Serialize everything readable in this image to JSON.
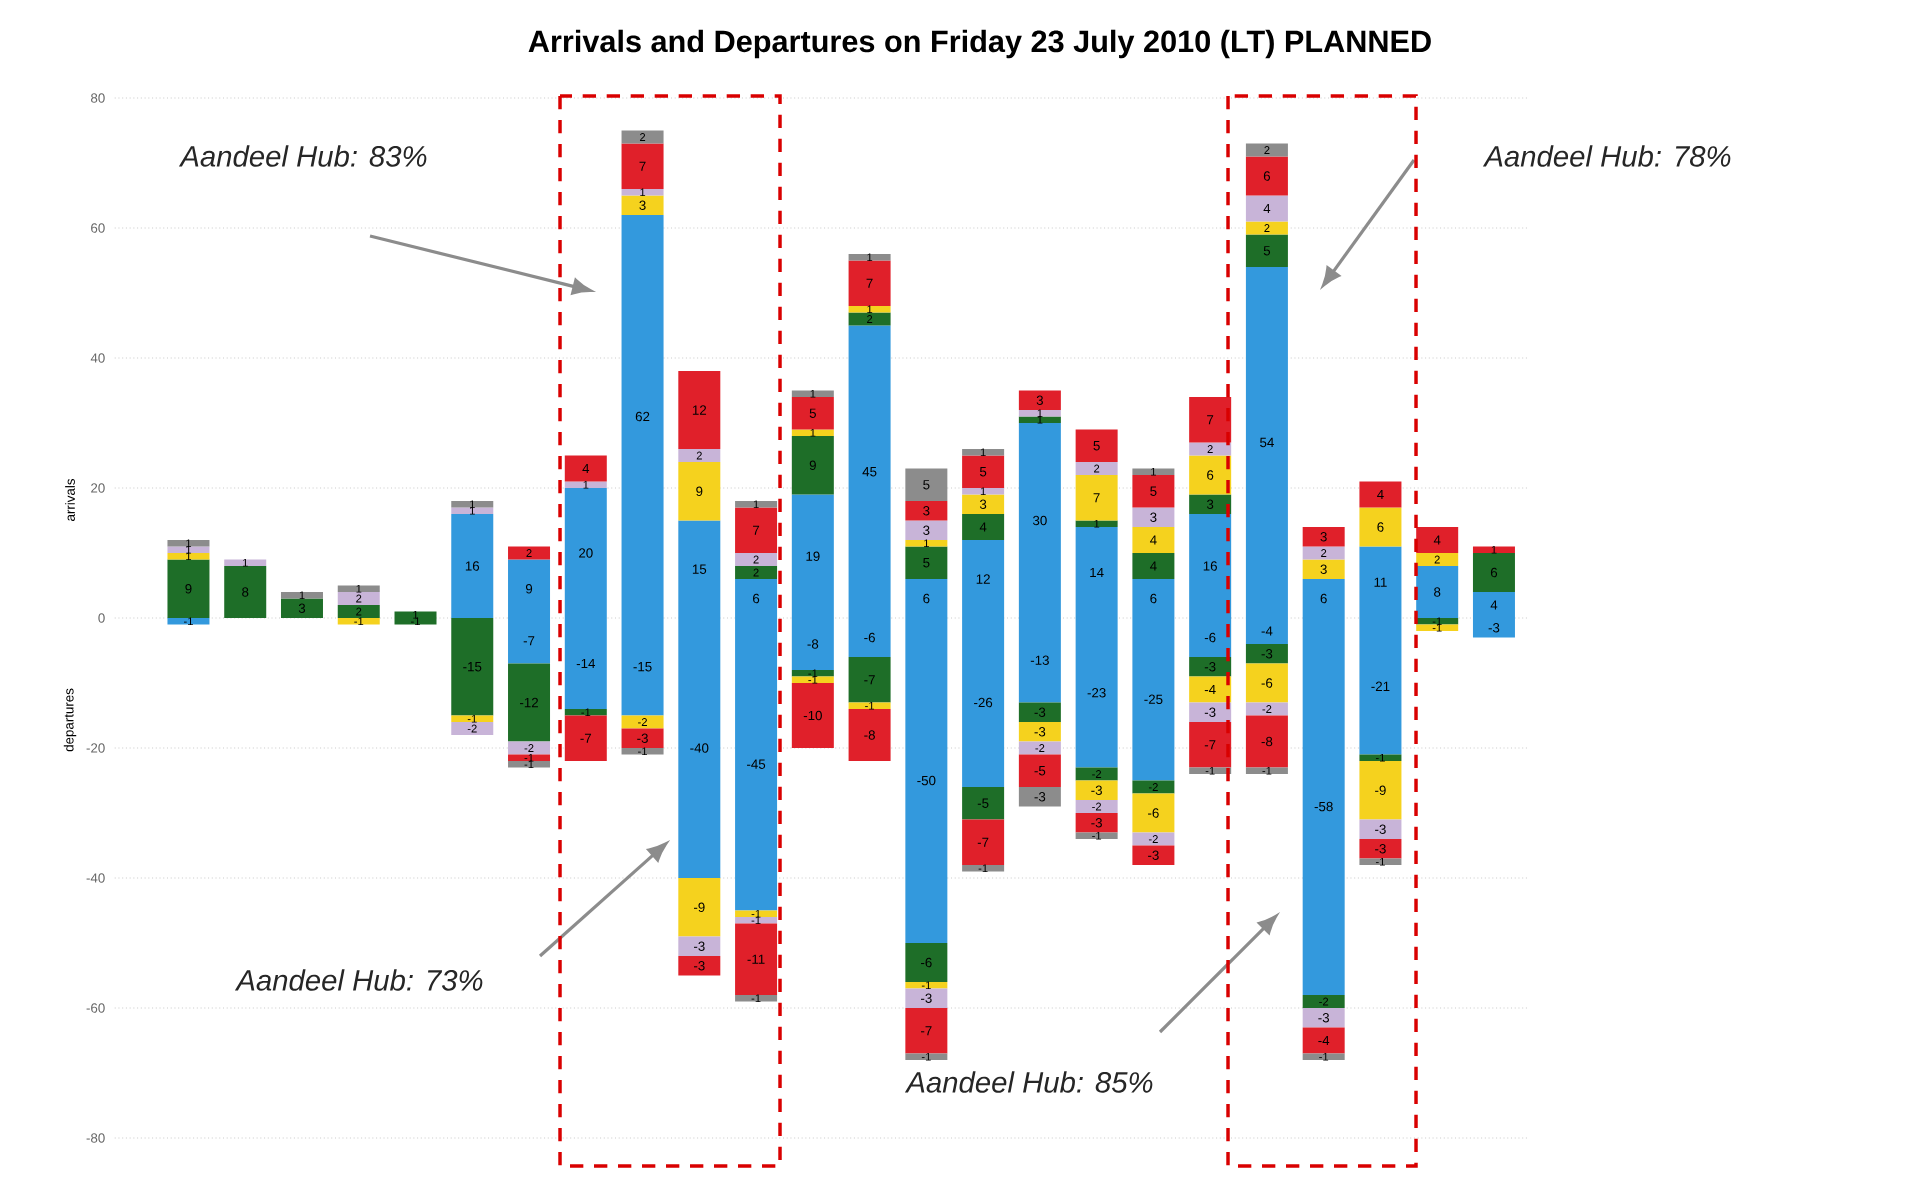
{
  "chart_data": {
    "type": "bar",
    "stacked": true,
    "title": "Arrivals and Departures on Friday 23 July 2010 (LT) PLANNED",
    "categories": [
      null,
      null,
      null,
      null,
      null,
      null,
      null,
      null,
      null,
      null,
      null,
      null,
      null,
      null,
      null,
      null,
      null,
      null,
      null,
      null,
      null,
      null,
      null,
      null
    ],
    "series": [
      {
        "color": "#3399dd",
        "values": [
          null,
          null,
          null,
          null,
          null,
          16,
          9,
          20,
          62,
          15,
          6,
          19,
          45,
          6,
          12,
          30,
          14,
          6,
          16,
          54,
          6,
          11,
          8,
          4
        ]
      },
      {
        "color": "#1e6e28",
        "values": [
          9,
          8,
          3,
          2,
          1,
          null,
          null,
          null,
          null,
          null,
          2,
          9,
          2,
          5,
          4,
          1,
          1,
          4,
          3,
          5,
          null,
          null,
          null,
          6
        ]
      },
      {
        "color": "#f5d21e",
        "values": [
          1,
          null,
          null,
          null,
          null,
          null,
          null,
          null,
          3,
          9,
          null,
          1,
          1,
          1,
          3,
          null,
          7,
          4,
          6,
          2,
          3,
          6,
          2,
          null
        ]
      },
      {
        "color": "#c8b4d8",
        "values": [
          1,
          1,
          null,
          2,
          null,
          1,
          null,
          1,
          1,
          2,
          2,
          null,
          null,
          3,
          1,
          1,
          2,
          3,
          2,
          4,
          2,
          null,
          null,
          null
        ]
      },
      {
        "color": "#e0202a",
        "values": [
          null,
          null,
          null,
          null,
          null,
          null,
          2,
          4,
          7,
          12,
          7,
          5,
          7,
          3,
          5,
          3,
          5,
          5,
          7,
          6,
          3,
          4,
          4,
          1
        ]
      },
      {
        "color": "#8c8c8c",
        "values": [
          1,
          null,
          1,
          1,
          null,
          1,
          null,
          null,
          2,
          null,
          1,
          1,
          1,
          5,
          1,
          null,
          null,
          1,
          null,
          2,
          null,
          null,
          null,
          null
        ]
      },
      {
        "color": "#3399dd",
        "values": [
          -1,
          null,
          null,
          null,
          null,
          null,
          -7,
          -14,
          -15,
          -40,
          -45,
          -8,
          -6,
          -50,
          -26,
          -13,
          -23,
          -25,
          -6,
          -4,
          -58,
          -21,
          null,
          -3
        ]
      },
      {
        "color": "#1e6e28",
        "values": [
          null,
          null,
          null,
          null,
          -1,
          -15,
          -12,
          -1,
          null,
          null,
          null,
          -1,
          -7,
          -6,
          -5,
          -3,
          -2,
          -2,
          -3,
          -3,
          -2,
          -1,
          -1,
          null
        ]
      },
      {
        "color": "#f5d21e",
        "values": [
          null,
          null,
          null,
          -1,
          null,
          -1,
          null,
          null,
          -2,
          -9,
          -1,
          -1,
          -1,
          -1,
          null,
          -3,
          -3,
          -6,
          -4,
          -6,
          null,
          -9,
          -1,
          null
        ]
      },
      {
        "color": "#c8b4d8",
        "values": [
          null,
          null,
          null,
          null,
          null,
          -2,
          -2,
          null,
          null,
          -3,
          -1,
          null,
          null,
          -3,
          null,
          -2,
          -2,
          -2,
          -3,
          -2,
          -3,
          -3,
          null,
          null
        ]
      },
      {
        "color": "#e0202a",
        "values": [
          null,
          null,
          null,
          null,
          null,
          null,
          -1,
          -7,
          -3,
          -3,
          -11,
          -10,
          -8,
          -7,
          -7,
          -5,
          -3,
          -3,
          -7,
          -8,
          -4,
          -3,
          null,
          null
        ]
      },
      {
        "color": "#8c8c8c",
        "values": [
          null,
          null,
          null,
          null,
          null,
          null,
          -1,
          null,
          -1,
          null,
          -1,
          null,
          null,
          -1,
          -1,
          -3,
          -1,
          null,
          -1,
          -1,
          -1,
          -1,
          null,
          null
        ]
      }
    ],
    "ylim": [
      -80,
      80
    ],
    "yticks": [
      -80,
      -60,
      -40,
      -20,
      0,
      20,
      40,
      60,
      80
    ],
    "grid": "y",
    "data_labels": true,
    "ylabel": "arrivals",
    "annotations": [
      "Aandeel Hub: 83%",
      "Aandeel Hub: 78%",
      "Aandeel Hub: 73%",
      "Aandeel Hub: 85%",
      "departures"
    ]
  }
}
